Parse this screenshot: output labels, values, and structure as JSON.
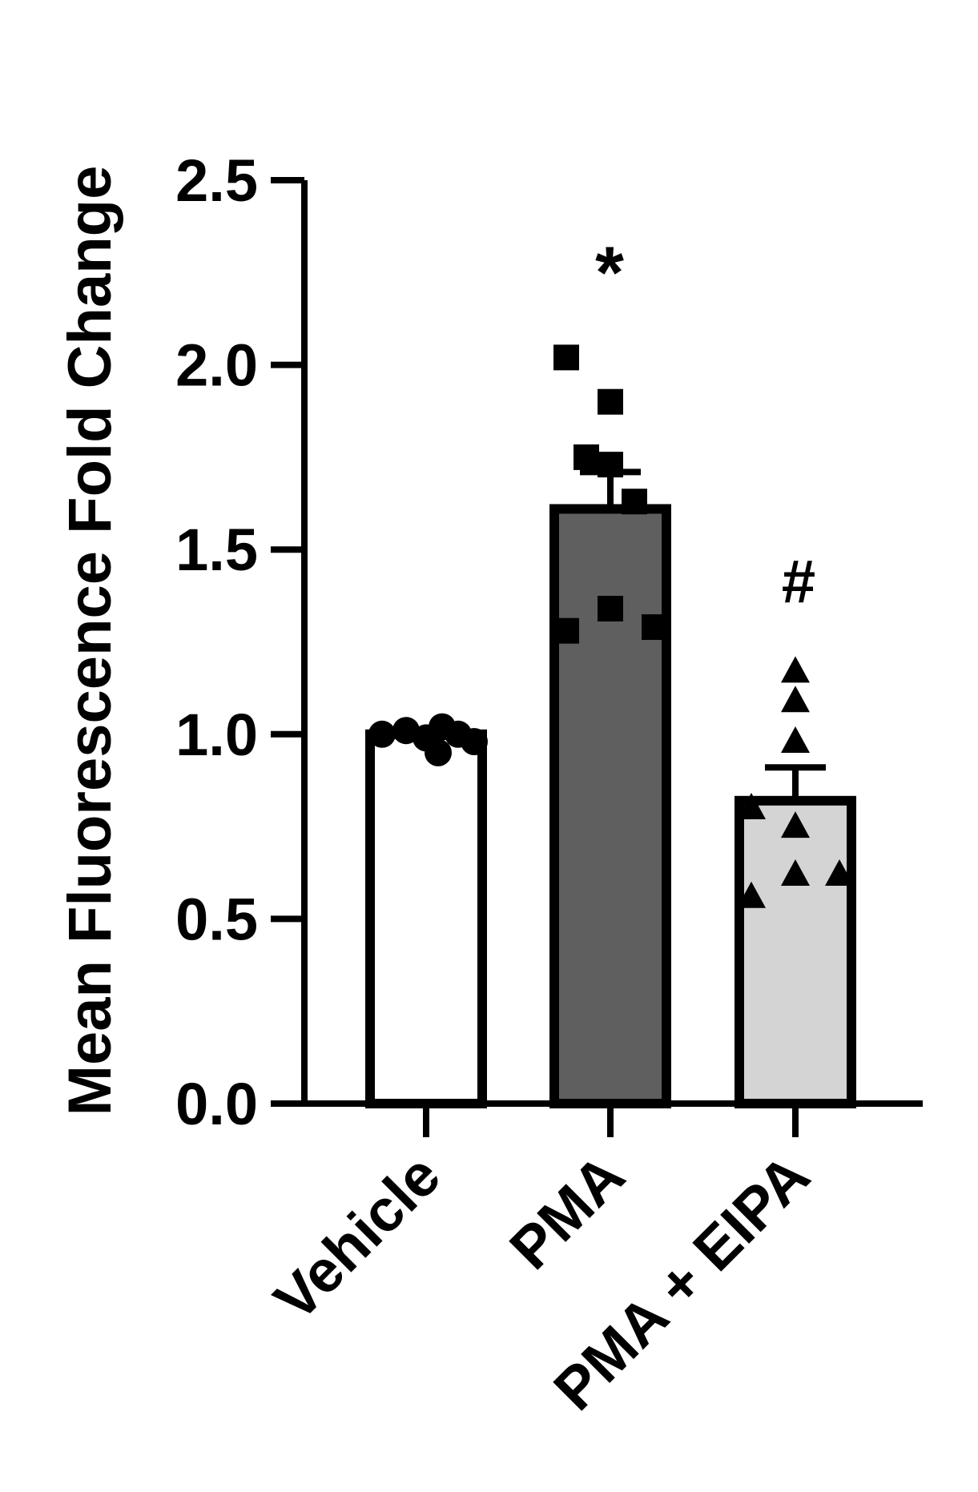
{
  "chart_data": {
    "type": "bar",
    "title": "",
    "xlabel": "",
    "ylabel": "Mean Fluorescence Fold Change",
    "ylim": [
      0,
      2.5
    ],
    "yticks": [
      "0.0",
      "0.5",
      "1.0",
      "1.5",
      "2.0",
      "2.5"
    ],
    "categories": [
      "Vehicle",
      "PMA",
      "PMA + EIPA"
    ],
    "values": [
      1.0,
      1.61,
      0.82
    ],
    "errors": [
      0.01,
      0.1,
      0.09
    ],
    "annotations": [
      "",
      "*",
      "#"
    ],
    "colors": [
      "#ffffff",
      "#5f5f5f",
      "#d4d4d4"
    ],
    "markers": [
      "circle",
      "square",
      "triangle"
    ],
    "points": [
      [
        1.0,
        1.01,
        0.99,
        1.02,
        0.95,
        1.0,
        0.98
      ],
      [
        2.02,
        1.9,
        1.73,
        1.75,
        1.63,
        1.34,
        1.28,
        1.29
      ],
      [
        1.17,
        1.09,
        0.98,
        0.8,
        0.75,
        0.62,
        0.62,
        0.56
      ]
    ],
    "grid": false,
    "legend": "none"
  }
}
